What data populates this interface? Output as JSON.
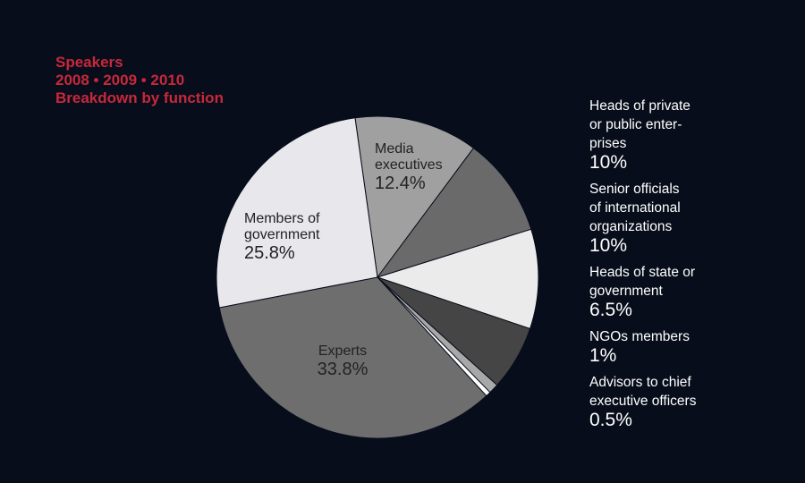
{
  "title_lines": [
    "Speakers",
    "2008 • 2009 • 2010",
    "Breakdown by function"
  ],
  "chart_data": {
    "type": "pie",
    "title": "Speakers 2008 • 2009 • 2010 Breakdown by function",
    "slices": [
      {
        "label": "Media executives",
        "value": 12.4,
        "value_label": "12.4%",
        "color": "#a0a0a0"
      },
      {
        "label": "Heads of private or public enterprises",
        "value": 10,
        "value_label": "10%",
        "color": "#6a6a6a"
      },
      {
        "label": "Senior officials of international organizations",
        "value": 10,
        "value_label": "10%",
        "color": "#ebebeb"
      },
      {
        "label": "Heads of state or government",
        "value": 6.5,
        "value_label": "6.5%",
        "color": "#454545"
      },
      {
        "label": "NGOs members",
        "value": 1,
        "value_label": "1%",
        "color": "#a8a8a8"
      },
      {
        "label": "Advisors to chief executive officers",
        "value": 0.5,
        "value_label": "0.5%",
        "color": "#ffffff"
      },
      {
        "label": "Experts",
        "value": 33.8,
        "value_label": "33.8%",
        "color": "#6e6e6e"
      },
      {
        "label": "Members of government",
        "value": 25.8,
        "value_label": "25.8%",
        "color": "#e8e8ec"
      }
    ],
    "inside_labels": [
      {
        "name": "Media\nexecutives",
        "pct": "12.4%"
      },
      {
        "name": "Members of\ngovernment",
        "pct": "25.8%"
      },
      {
        "name": "Experts",
        "pct": "33.8%"
      }
    ],
    "legend": [
      {
        "name": "Heads of private\nor public enter-\nprises",
        "pct": "10%"
      },
      {
        "name": "Senior officials\nof international\norganizations",
        "pct": "10%"
      },
      {
        "name": "Heads of state or\ngovernment",
        "pct": "6.5%"
      },
      {
        "name": "NGOs members",
        "pct": "1%"
      },
      {
        "name": "Advisors to chief\nexecutive officers",
        "pct": "0.5%"
      }
    ],
    "legend_placement": "right"
  }
}
